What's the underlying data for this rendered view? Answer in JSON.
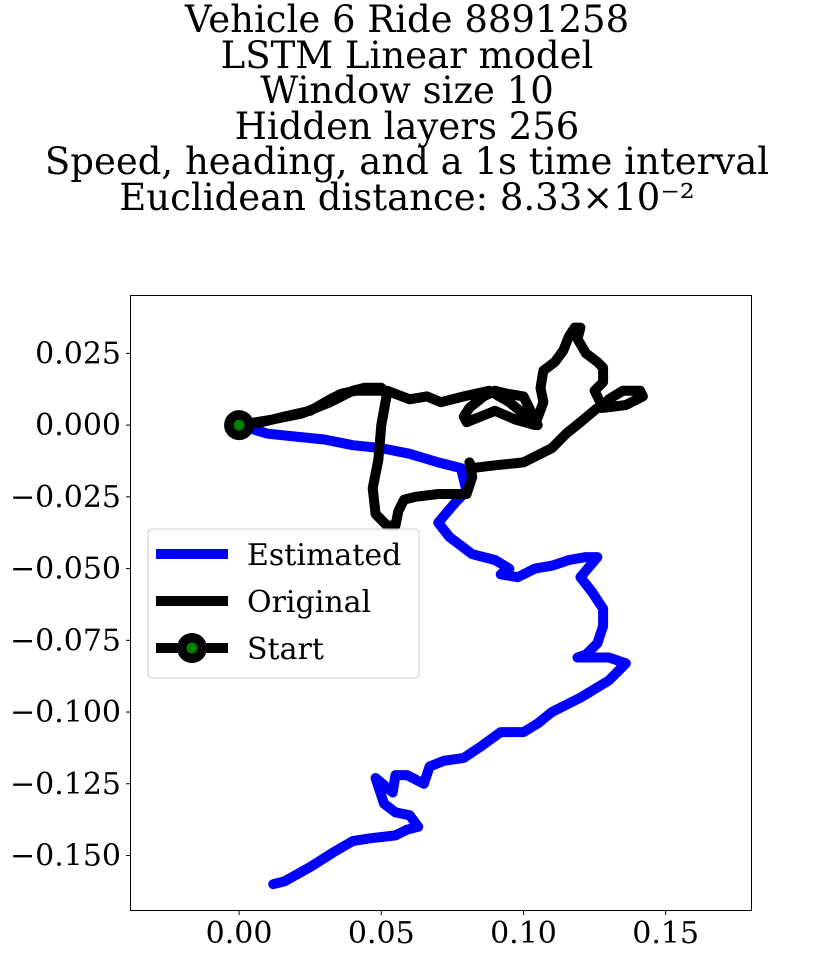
{
  "chart_data": {
    "type": "line",
    "title_lines": [
      "Vehicle 6 Ride 8891258",
      "LSTM Linear model",
      "Window size 10",
      "Hidden layers 256",
      "Speed, heading, and a 1s time interval",
      "Euclidean distance: 8.33×10⁻²"
    ],
    "xlabel": "",
    "ylabel": "",
    "xlim": [
      -0.038,
      0.18
    ],
    "ylim": [
      -0.169,
      0.045
    ],
    "x_ticks": [
      0.0,
      0.05,
      0.1,
      0.15
    ],
    "x_tick_labels": [
      "0.00",
      "0.05",
      "0.10",
      "0.15"
    ],
    "y_ticks": [
      0.025,
      0.0,
      -0.025,
      -0.05,
      -0.075,
      -0.1,
      -0.125,
      -0.15
    ],
    "y_tick_labels": [
      "0.025",
      "0.000",
      "−0.025",
      "−0.050",
      "−0.075",
      "−0.100",
      "−0.125",
      "−0.150"
    ],
    "grid": false,
    "legend_position": "center-left",
    "series": [
      {
        "name": "Estimated",
        "color": "#0000ff",
        "x": [
          0.0,
          0.01,
          0.02,
          0.03,
          0.04,
          0.05,
          0.06,
          0.07,
          0.078,
          0.08,
          0.076,
          0.07,
          0.074,
          0.082,
          0.09,
          0.095,
          0.092,
          0.098,
          0.104,
          0.11,
          0.116,
          0.122,
          0.126,
          0.12,
          0.124,
          0.128,
          0.128,
          0.126,
          0.122,
          0.119,
          0.124,
          0.13,
          0.136,
          0.13,
          0.12,
          0.11,
          0.105,
          0.1,
          0.092,
          0.085,
          0.079,
          0.072,
          0.067,
          0.065,
          0.059,
          0.055,
          0.054,
          0.048,
          0.051,
          0.055,
          0.06,
          0.063,
          0.059,
          0.055,
          0.046,
          0.04,
          0.033,
          0.025,
          0.016,
          0.012
        ],
        "y": [
          0.0,
          -0.003,
          -0.004,
          -0.005,
          -0.007,
          -0.008,
          -0.01,
          -0.013,
          -0.015,
          -0.023,
          -0.027,
          -0.034,
          -0.039,
          -0.045,
          -0.047,
          -0.05,
          -0.052,
          -0.053,
          -0.05,
          -0.049,
          -0.047,
          -0.046,
          -0.046,
          -0.053,
          -0.058,
          -0.064,
          -0.07,
          -0.076,
          -0.08,
          -0.081,
          -0.081,
          -0.081,
          -0.083,
          -0.089,
          -0.095,
          -0.1,
          -0.104,
          -0.107,
          -0.107,
          -0.112,
          -0.116,
          -0.117,
          -0.119,
          -0.125,
          -0.122,
          -0.122,
          -0.128,
          -0.123,
          -0.132,
          -0.135,
          -0.136,
          -0.14,
          -0.141,
          -0.143,
          -0.144,
          -0.145,
          -0.149,
          -0.154,
          -0.159,
          -0.16
        ]
      },
      {
        "name": "Original",
        "color": "#000000",
        "x": [
          0.0,
          0.012,
          0.022,
          0.032,
          0.036,
          0.04,
          0.044,
          0.05,
          0.052,
          0.05,
          0.049,
          0.047,
          0.048,
          0.052,
          0.055,
          0.056,
          0.058,
          0.062,
          0.07,
          0.08,
          0.082,
          0.081,
          0.082,
          0.09,
          0.1,
          0.11,
          0.115,
          0.12,
          0.126,
          0.128,
          0.13,
          0.135,
          0.141,
          0.142,
          0.136,
          0.128,
          0.125,
          0.128,
          0.128,
          0.126,
          0.122,
          0.119,
          0.12,
          0.118,
          0.116,
          0.114,
          0.111,
          0.107,
          0.106,
          0.107,
          0.104,
          0.097,
          0.09,
          0.085,
          0.08,
          0.079,
          0.081,
          0.086,
          0.09,
          0.094,
          0.1,
          0.105,
          0.095,
          0.088,
          0.079,
          0.071,
          0.066,
          0.06,
          0.052,
          0.046,
          0.041,
          0.036,
          0.032,
          0.025,
          0.016,
          0.008,
          0.0
        ],
        "y": [
          0.0,
          0.002,
          0.004,
          0.008,
          0.01,
          0.012,
          0.013,
          0.013,
          0.011,
          0.0,
          -0.012,
          -0.022,
          -0.031,
          -0.035,
          -0.035,
          -0.03,
          -0.026,
          -0.025,
          -0.024,
          -0.024,
          -0.018,
          -0.013,
          -0.015,
          -0.014,
          -0.013,
          -0.008,
          -0.003,
          0.001,
          0.006,
          0.006,
          0.009,
          0.012,
          0.012,
          0.01,
          0.007,
          0.006,
          0.012,
          0.015,
          0.02,
          0.022,
          0.025,
          0.03,
          0.034,
          0.034,
          0.031,
          0.026,
          0.022,
          0.019,
          0.013,
          0.008,
          0.0,
          0.002,
          0.005,
          0.003,
          0.001,
          0.003,
          0.006,
          0.01,
          0.012,
          0.011,
          0.01,
          0.0,
          0.008,
          0.012,
          0.01,
          0.008,
          0.01,
          0.009,
          0.012,
          0.012,
          0.012,
          0.011,
          0.009,
          0.005,
          0.003,
          0.001,
          0.0
        ]
      }
    ],
    "start_point": {
      "name": "Start",
      "x": 0.0,
      "y": 0.0,
      "outer_color": "#000000",
      "inner_color": "#008000"
    }
  }
}
